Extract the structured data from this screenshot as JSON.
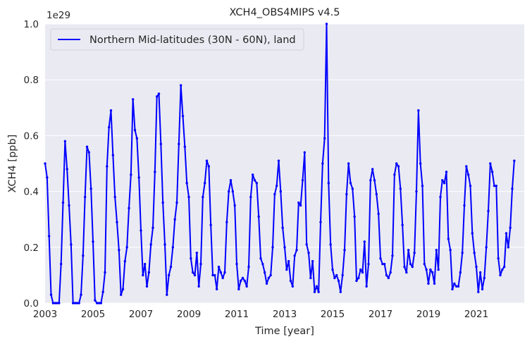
{
  "chart_data": {
    "type": "line",
    "title": "XCH4_OBS4MIPS v4.5",
    "xlabel": "Time [year]",
    "ylabel": "XCH4 [ppb]",
    "y_offset_label": "1e29",
    "xlim": [
      2003.0,
      2023.0
    ],
    "ylim": [
      0.0,
      1.0
    ],
    "x_ticks": [
      2003,
      2005,
      2007,
      2009,
      2011,
      2013,
      2015,
      2017,
      2019,
      2021
    ],
    "x_tick_labels": [
      "2003",
      "2005",
      "2007",
      "2009",
      "2011",
      "2013",
      "2015",
      "2017",
      "2019",
      "2021"
    ],
    "y_ticks": [
      0.0,
      0.2,
      0.4,
      0.6,
      0.8,
      1.0
    ],
    "y_tick_labels": [
      "0.0",
      "0.2",
      "0.4",
      "0.6",
      "0.8",
      "1.0"
    ],
    "grid": true,
    "legend_position": "top-left",
    "colors": {
      "background": "#eaeaf2",
      "grid": "#ffffff",
      "series": "#0000ff"
    },
    "series": [
      {
        "name": "Northern Mid-latitudes (30N - 60N), land",
        "x_start": 2003.0,
        "x_step_months": 1,
        "values": [
          0.5,
          0.45,
          0.24,
          0.03,
          0.0,
          0.0,
          0.0,
          0.0,
          0.14,
          0.36,
          0.58,
          0.48,
          0.35,
          0.21,
          0.0,
          0.0,
          0.0,
          0.0,
          0.03,
          0.17,
          0.38,
          0.56,
          0.54,
          0.41,
          0.22,
          0.01,
          0.0,
          0.0,
          0.0,
          0.04,
          0.11,
          0.49,
          0.63,
          0.69,
          0.53,
          0.38,
          0.29,
          0.19,
          0.03,
          0.05,
          0.15,
          0.2,
          0.34,
          0.46,
          0.73,
          0.62,
          0.59,
          0.45,
          0.26,
          0.1,
          0.14,
          0.06,
          0.11,
          0.21,
          0.27,
          0.47,
          0.74,
          0.75,
          0.57,
          0.36,
          0.21,
          0.03,
          0.1,
          0.13,
          0.2,
          0.3,
          0.36,
          0.57,
          0.78,
          0.67,
          0.56,
          0.43,
          0.38,
          0.16,
          0.11,
          0.1,
          0.18,
          0.06,
          0.14,
          0.38,
          0.43,
          0.51,
          0.49,
          0.28,
          0.1,
          0.1,
          0.05,
          0.13,
          0.11,
          0.09,
          0.11,
          0.29,
          0.4,
          0.44,
          0.4,
          0.35,
          0.14,
          0.05,
          0.08,
          0.09,
          0.08,
          0.06,
          0.13,
          0.38,
          0.46,
          0.44,
          0.43,
          0.31,
          0.16,
          0.14,
          0.11,
          0.07,
          0.09,
          0.1,
          0.2,
          0.39,
          0.42,
          0.51,
          0.4,
          0.27,
          0.2,
          0.12,
          0.15,
          0.08,
          0.06,
          0.17,
          0.19,
          0.36,
          0.35,
          0.44,
          0.54,
          0.21,
          0.18,
          0.09,
          0.15,
          0.04,
          0.06,
          0.04,
          0.29,
          0.5,
          0.59,
          1.0,
          0.43,
          0.21,
          0.12,
          0.09,
          0.1,
          0.08,
          0.04,
          0.1,
          0.19,
          0.39,
          0.5,
          0.43,
          0.41,
          0.31,
          0.08,
          0.09,
          0.12,
          0.11,
          0.22,
          0.06,
          0.14,
          0.44,
          0.48,
          0.44,
          0.39,
          0.32,
          0.16,
          0.14,
          0.14,
          0.1,
          0.09,
          0.11,
          0.17,
          0.46,
          0.5,
          0.49,
          0.41,
          0.28,
          0.13,
          0.11,
          0.19,
          0.14,
          0.13,
          0.18,
          0.4,
          0.69,
          0.5,
          0.42,
          0.14,
          0.12,
          0.07,
          0.12,
          0.11,
          0.07,
          0.19,
          0.12,
          0.38,
          0.44,
          0.43,
          0.47,
          0.23,
          0.19,
          0.05,
          0.07,
          0.06,
          0.06,
          0.11,
          0.18,
          0.35,
          0.49,
          0.46,
          0.42,
          0.25,
          0.18,
          0.13,
          0.04,
          0.11,
          0.05,
          0.09,
          0.2,
          0.33,
          0.5,
          0.47,
          0.42,
          0.42,
          0.16,
          0.1,
          0.12,
          0.13,
          0.25,
          0.2,
          0.27,
          0.41,
          0.51
        ]
      }
    ]
  }
}
